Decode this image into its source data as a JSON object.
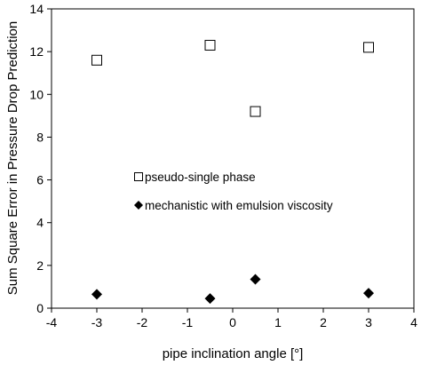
{
  "chart_data": {
    "type": "scatter",
    "xlabel": "pipe inclination angle [°]",
    "ylabel": "Sum Square Error in Pressure Drop Prediction",
    "xlim": [
      -4,
      4
    ],
    "ylim": [
      0,
      14
    ],
    "xticks": [
      -4,
      -3,
      -2,
      -1,
      0,
      1,
      2,
      3,
      4
    ],
    "yticks": [
      0,
      2,
      4,
      6,
      8,
      10,
      12,
      14
    ],
    "grid": false,
    "legend_placement": "center",
    "series": [
      {
        "name": "pseudo-single phase",
        "marker": "open-square",
        "color": "#000000",
        "points": [
          {
            "x": -3,
            "y": 11.6
          },
          {
            "x": -0.5,
            "y": 12.3
          },
          {
            "x": 0.5,
            "y": 9.2
          },
          {
            "x": 3,
            "y": 12.2
          }
        ]
      },
      {
        "name": "mechanistic with emulsion viscosity",
        "marker": "filled-diamond",
        "color": "#000000",
        "points": [
          {
            "x": -3,
            "y": 0.65
          },
          {
            "x": -0.5,
            "y": 0.45
          },
          {
            "x": 0.5,
            "y": 1.35
          },
          {
            "x": 3,
            "y": 0.7
          }
        ]
      }
    ]
  }
}
